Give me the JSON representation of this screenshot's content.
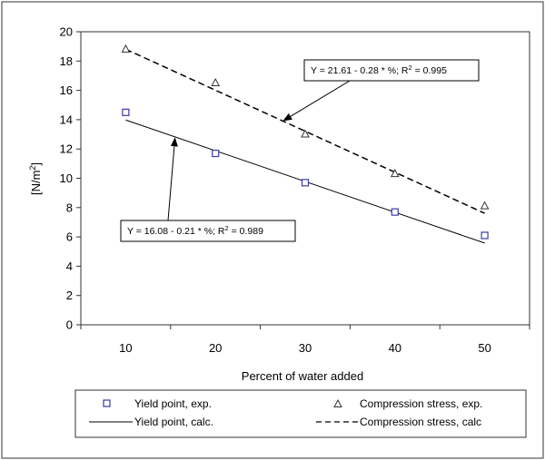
{
  "chart_data": {
    "type": "scatter",
    "x": [
      10,
      20,
      30,
      40,
      50
    ],
    "xlabel": "Percent of water added",
    "ylabel_main": "[N/m",
    "ylabel_sup": "2",
    "ylabel_end": "]",
    "xlim": [
      5,
      55
    ],
    "ylim": [
      0,
      20
    ],
    "xticks": [
      10,
      20,
      30,
      40,
      50
    ],
    "yticks": [
      0,
      2,
      4,
      6,
      8,
      10,
      12,
      14,
      16,
      18,
      20
    ],
    "grid": false,
    "legend_position": "bottom",
    "series": [
      {
        "name": "Yield point, exp.",
        "kind": "markers",
        "marker": "square",
        "color": "#3a3aa8",
        "values": [
          14.5,
          11.7,
          9.7,
          7.7,
          6.1
        ]
      },
      {
        "name": "Compression stress, exp.",
        "kind": "markers",
        "marker": "triangle",
        "color": "#333333",
        "values": [
          18.8,
          16.5,
          13.0,
          10.3,
          8.1
        ]
      },
      {
        "name": "Yield point, calc.",
        "kind": "line",
        "dash": "solid",
        "color": "#000000",
        "x_range": [
          10,
          50
        ],
        "intercept": 16.08,
        "slope": -0.21
      },
      {
        "name": "Compression stress, calc",
        "kind": "line",
        "dash": "dashed",
        "color": "#000000",
        "x_range": [
          10,
          50
        ],
        "intercept": 21.61,
        "slope": -0.28
      }
    ],
    "annotations": [
      {
        "label_pre": "Y = 21.61 - 0.28 * %; R",
        "label_sup": "2",
        "label_post": " = 0.995",
        "target_series": "Compression stress, calc",
        "point": [
          27.5,
          13.9
        ]
      },
      {
        "label_pre": "Y = 16.08 - 0.21 * %; R",
        "label_sup": "2",
        "label_post": " = 0.989",
        "target_series": "Yield point, calc.",
        "point": [
          15.5,
          12.8
        ]
      }
    ]
  }
}
